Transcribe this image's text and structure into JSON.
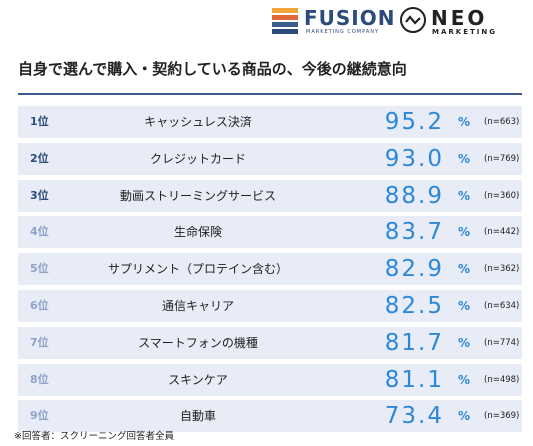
{
  "header": {
    "fusion_logo": "FUSION",
    "fusion_sub": "MARKETING COMPANY",
    "neo_logo": "NEO",
    "neo_sub": "MARKETING"
  },
  "colors": {
    "row_bg": "#e7ecf6",
    "value_color": "#2e88d8",
    "rank_top": "#2c4a7a",
    "rank_rest": "#8fa3c8",
    "title_line": "#3b5b8f",
    "fusion_stripes": [
      "#f2a33a",
      "#e4673a",
      "#3c5c8e",
      "#2c4a7a"
    ]
  },
  "chart_data": {
    "type": "table",
    "title": "自身で選んで購入・契約している商品の、今後の継続意向",
    "unit": "%",
    "rows": [
      {
        "rank": "1位",
        "label": "キャッシュレス決済",
        "value": "95.2",
        "n": "(n=663)"
      },
      {
        "rank": "2位",
        "label": "クレジットカード",
        "value": "93.0",
        "n": "(n=769)"
      },
      {
        "rank": "3位",
        "label": "動画ストリーミングサービス",
        "value": "88.9",
        "n": "(n=360)"
      },
      {
        "rank": "4位",
        "label": "生命保険",
        "value": "83.7",
        "n": "(n=442)"
      },
      {
        "rank": "5位",
        "label": "サプリメント（プロテイン含む）",
        "value": "82.9",
        "n": "(n=362)"
      },
      {
        "rank": "6位",
        "label": "通信キャリア",
        "value": "82.5",
        "n": "(n=634)"
      },
      {
        "rank": "7位",
        "label": "スマートフォンの機種",
        "value": "81.7",
        "n": "(n=774)"
      },
      {
        "rank": "8位",
        "label": "スキンケア",
        "value": "81.1",
        "n": "(n=498)"
      },
      {
        "rank": "9位",
        "label": "自動車",
        "value": "73.4",
        "n": "(n=369)"
      }
    ],
    "footnote": "※回答者：スクリーニング回答者全員"
  }
}
